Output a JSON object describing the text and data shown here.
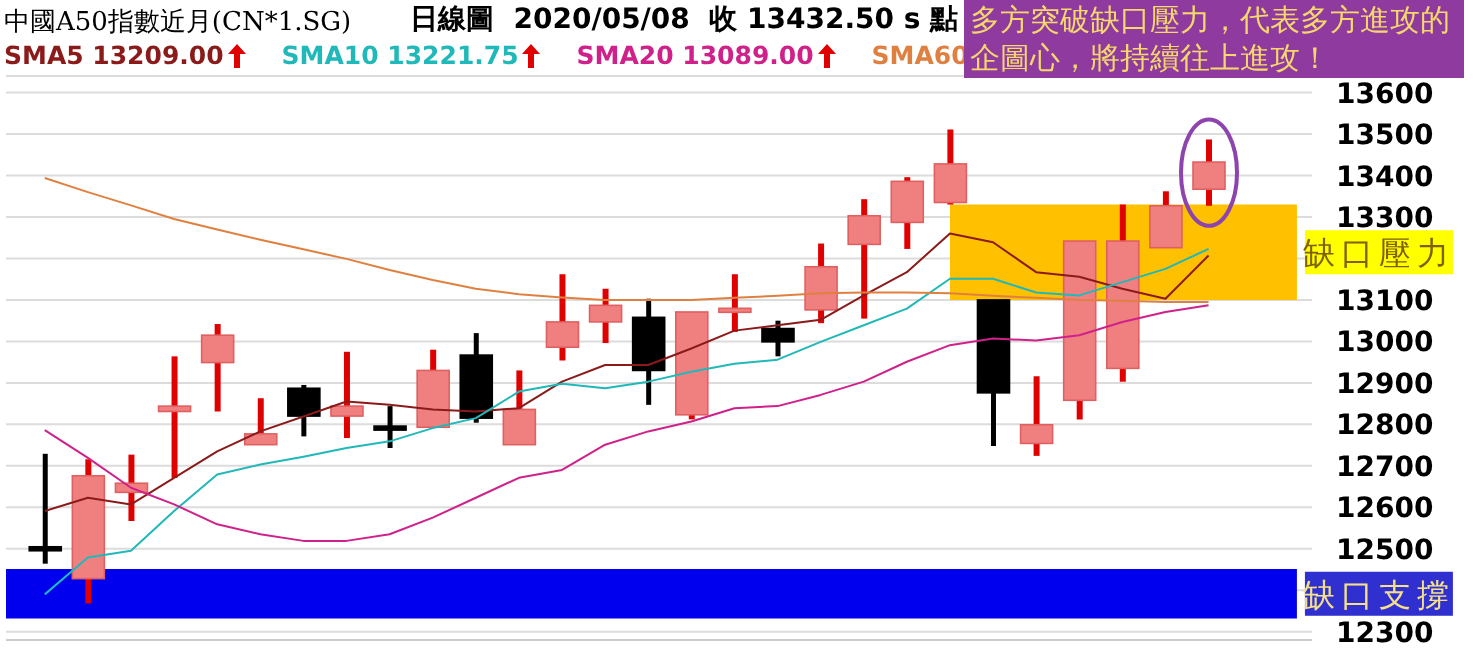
{
  "chart_data": {
    "type": "candlestick",
    "title": "中國A50指數近月(CN*1.SG)",
    "subtitle": "日線圖  2020/05/08  收 13432.50 s 點",
    "categories": [
      null,
      null,
      null,
      null,
      null,
      null,
      null,
      null,
      null,
      null,
      null,
      null,
      null,
      null,
      null,
      null,
      null,
      null,
      null,
      null,
      null,
      null,
      null,
      null,
      null,
      null,
      null,
      null
    ],
    "ohlc": [
      [
        12500,
        12729,
        12464,
        12500
      ],
      [
        12428,
        12716,
        12368,
        12676
      ],
      [
        12636,
        12727,
        12567,
        12658
      ],
      [
        12831,
        12964,
        12671,
        12844
      ],
      [
        12949,
        13042,
        12831,
        13015
      ],
      [
        12751,
        12863,
        12751,
        12777
      ],
      [
        12887,
        12895,
        12771,
        12820
      ],
      [
        12820,
        12975,
        12767,
        12844
      ],
      [
        12795,
        12844,
        12743,
        12787
      ],
      [
        12793,
        12980,
        12793,
        12930
      ],
      [
        12967,
        13020,
        12804,
        12815
      ],
      [
        12751,
        12930,
        12751,
        12836
      ],
      [
        12986,
        13162,
        12954,
        13047
      ],
      [
        13047,
        13127,
        12996,
        13087
      ],
      [
        13058,
        13103,
        12847,
        12930
      ],
      [
        12823,
        13071,
        12812,
        13071
      ],
      [
        13071,
        13162,
        13023,
        13079
      ],
      [
        13031,
        13050,
        12964,
        12999
      ],
      [
        13076,
        13236,
        13044,
        13180
      ],
      [
        13234,
        13343,
        13055,
        13303
      ],
      [
        13287,
        13396,
        13223,
        13386
      ],
      [
        13335,
        13511,
        13330,
        13428
      ],
      [
        13100,
        13100,
        12748,
        12876
      ],
      [
        12754,
        12916,
        12724,
        12799
      ],
      [
        12858,
        13242,
        12812,
        13242
      ],
      [
        12935,
        13330,
        12903,
        13242
      ],
      [
        13226,
        13362,
        13226,
        13327
      ],
      [
        13367,
        13487,
        13327,
        13432.5
      ]
    ],
    "colors": [
      "#000000",
      "#f08080",
      "#f08080",
      "#f08080",
      "#f08080",
      "#f08080",
      "#000000",
      "#f08080",
      "#000000",
      "#f08080",
      "#000000",
      "#f08080",
      "#f08080",
      "#f08080",
      "#000000",
      "#f08080",
      "#f08080",
      "#000000",
      "#f08080",
      "#f08080",
      "#f08080",
      "#f08080",
      "#000000",
      "#f08080",
      "#f08080",
      "#f08080",
      "#f08080",
      "#f08080"
    ],
    "series": [
      {
        "type": "line",
        "name": "SMA5 13209.00",
        "color": "#8b1a1a",
        "values": [
          12591,
          12623,
          12607,
          12671,
          12735,
          12783,
          12819,
          12855,
          12847,
          12836,
          12831,
          12839,
          12903,
          12943,
          12943,
          12983,
          13026,
          13039,
          13052,
          13111,
          13167,
          13260,
          13239,
          13167,
          13156,
          13127,
          13103,
          13207
        ]
      },
      {
        "type": "line",
        "name": "SMA10 13221.75",
        "color": "#20b8b8",
        "values": [
          12390,
          12479,
          12495,
          12591,
          12679,
          12703,
          12722,
          12743,
          12759,
          12791,
          12815,
          12879,
          12898,
          12887,
          12903,
          12927,
          12946,
          12956,
          12999,
          13039,
          13079,
          13151,
          13151,
          13118,
          13111,
          13143,
          13175,
          13223
        ]
      },
      {
        "type": "line",
        "name": "SMA20 13089.00",
        "color": "#d0208a",
        "values": [
          12786,
          12719,
          12647,
          12607,
          12559,
          12535,
          12519,
          12519,
          12535,
          12575,
          12623,
          12671,
          12690,
          12751,
          12783,
          12807,
          12839,
          12844,
          12871,
          12903,
          12951,
          12991,
          13007,
          13002,
          13015,
          13047,
          13071,
          13087
        ]
      },
      {
        "type": "line",
        "name": "SMA60",
        "color": "#e08040",
        "values": [
          13394,
          13360,
          13328,
          13295,
          13270,
          13245,
          13222,
          13199,
          13172,
          13148,
          13127,
          13114,
          13106,
          13100,
          13100,
          13100,
          13105,
          13110,
          13116,
          13118,
          13118,
          13116,
          13110,
          13105,
          13100,
          13098,
          13095,
          13095
        ]
      }
    ],
    "ylim": [
      12280,
      13640
    ],
    "yticks": [
      12300,
      {
        "value": 12400,
        "label": null
      },
      12500,
      12600,
      12700,
      12800,
      12900,
      13000,
      13100,
      {
        "value": 13200,
        "label": null
      },
      13300,
      13400,
      13500,
      13600
    ],
    "bands": [
      {
        "axis": "y",
        "from": 13330,
        "to": 13100,
        "label": "缺口壓力",
        "color": "#ffc000"
      },
      {
        "axis": "y",
        "from": 12451,
        "to": 12332,
        "label": "缺口支撐",
        "color": "#0000ee"
      }
    ],
    "annotations": [
      "多方突破缺口壓力，代表多方進攻的企圖心，將持續往上進攻！"
    ],
    "grid": "y",
    "legend": "top",
    "tick_labels": "y"
  }
}
